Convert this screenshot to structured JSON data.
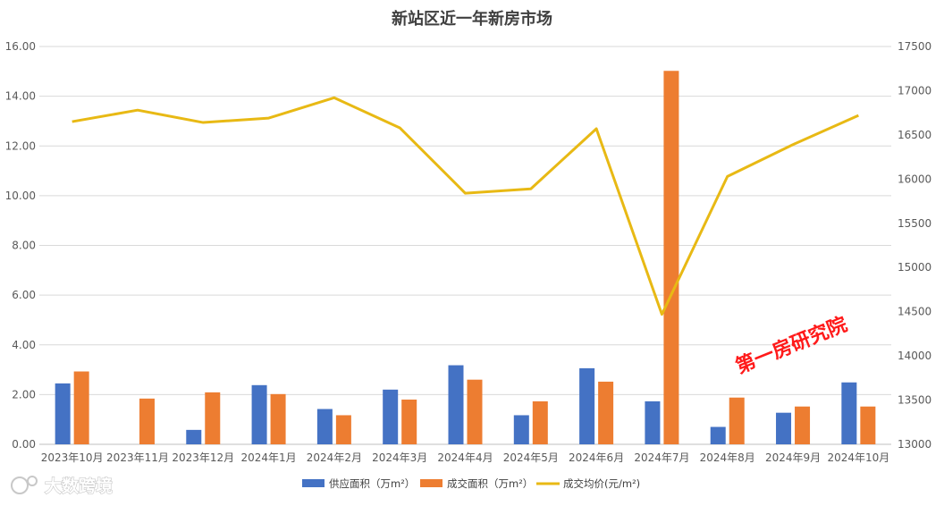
{
  "chart_data": {
    "type": "bar",
    "title": "新站区近一年新房市场",
    "categories": [
      "2023年10月",
      "2023年11月",
      "2023年12月",
      "2024年1月",
      "2024年2月",
      "2024年3月",
      "2024年4月",
      "2024年5月",
      "2024年6月",
      "2024年7月",
      "2024年8月",
      "2024年9月",
      "2024年10月"
    ],
    "series": [
      {
        "name": "供应面积（万m²）",
        "type": "bar",
        "axis": "left",
        "color": "#4472c4",
        "values": [
          2.45,
          0,
          0.58,
          2.38,
          1.42,
          2.2,
          3.18,
          1.17,
          3.06,
          1.73,
          0.7,
          1.27,
          2.49
        ]
      },
      {
        "name": "成交面积（万m²）",
        "type": "bar",
        "axis": "left",
        "color": "#ed7d31",
        "values": [
          2.93,
          1.84,
          2.09,
          2.02,
          1.17,
          1.8,
          2.6,
          1.73,
          2.52,
          15.02,
          1.88,
          1.52,
          1.52
        ]
      },
      {
        "name": "成交均价(元/m²)",
        "type": "line",
        "axis": "right",
        "color": "#e8b914",
        "values": [
          16650,
          16780,
          16640,
          16690,
          16920,
          16580,
          15840,
          15890,
          16570,
          14470,
          16030,
          16390,
          16720
        ]
      }
    ],
    "left_axis": {
      "ylim": [
        0,
        16
      ],
      "ticks": [
        "0.00",
        "2.00",
        "4.00",
        "6.00",
        "8.00",
        "10.00",
        "12.00",
        "14.00",
        "16.00"
      ]
    },
    "right_axis": {
      "ylim": [
        13000,
        17500
      ],
      "ticks": [
        "13000",
        "13500",
        "14000",
        "14500",
        "15000",
        "15500",
        "16000",
        "16500",
        "17000",
        "17500"
      ]
    },
    "grid": true,
    "legend_position": "bottom"
  },
  "watermarks": {
    "stamp": "第一房研究院",
    "logo": "大数跨境"
  }
}
